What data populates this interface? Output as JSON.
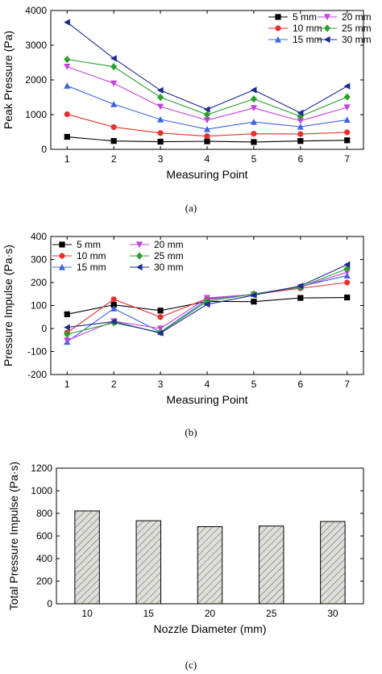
{
  "chart_data": [
    {
      "type": "line",
      "panel_label": "(a)",
      "xlabel": "Measuring Point",
      "ylabel": "Peak Pressure (Pa)",
      "x": [
        1,
        2,
        3,
        4,
        5,
        6,
        7
      ],
      "ylim": [
        0,
        4000
      ],
      "yticks": [
        0,
        1000,
        2000,
        3000,
        4000
      ],
      "grid": false,
      "legend_position": "top-right",
      "series": [
        {
          "name": "5 mm",
          "color": "#000000",
          "marker": "square",
          "values": [
            360,
            240,
            220,
            230,
            210,
            240,
            260
          ]
        },
        {
          "name": "10 mm",
          "color": "#e8312f",
          "marker": "circle",
          "values": [
            1010,
            640,
            470,
            380,
            450,
            440,
            490
          ]
        },
        {
          "name": "15 mm",
          "color": "#3f64e0",
          "marker": "triangle-up",
          "values": [
            1830,
            1300,
            860,
            580,
            790,
            650,
            850
          ]
        },
        {
          "name": "20 mm",
          "color": "#c440e0",
          "marker": "triangle-down",
          "values": [
            2380,
            1900,
            1230,
            840,
            1190,
            820,
            1210
          ]
        },
        {
          "name": "25 mm",
          "color": "#2ca02c",
          "marker": "diamond",
          "values": [
            2590,
            2380,
            1500,
            1000,
            1450,
            950,
            1510
          ]
        },
        {
          "name": "30 mm",
          "color": "#1b2a8f",
          "marker": "triangle-left",
          "values": [
            3660,
            2620,
            1700,
            1150,
            1710,
            1050,
            1820
          ]
        }
      ]
    },
    {
      "type": "line",
      "panel_label": "(b)",
      "xlabel": "Measuring Point",
      "ylabel": "Pressure Impulse (Pa·s)",
      "x": [
        1,
        2,
        3,
        4,
        5,
        6,
        7
      ],
      "ylim": [
        -200,
        400
      ],
      "yticks": [
        -200,
        -100,
        0,
        100,
        200,
        300,
        400
      ],
      "grid": false,
      "legend_position": "top-left",
      "series": [
        {
          "name": "5 mm",
          "color": "#000000",
          "marker": "square",
          "values": [
            62,
            103,
            78,
            118,
            117,
            133,
            135
          ]
        },
        {
          "name": "10 mm",
          "color": "#e8312f",
          "marker": "circle",
          "values": [
            -18,
            127,
            50,
            130,
            148,
            175,
            200
          ]
        },
        {
          "name": "15 mm",
          "color": "#3f64e0",
          "marker": "triangle-up",
          "values": [
            -58,
            87,
            -15,
            125,
            150,
            183,
            230
          ]
        },
        {
          "name": "20 mm",
          "color": "#c440e0",
          "marker": "triangle-down",
          "values": [
            -52,
            32,
            0,
            133,
            148,
            180,
            245
          ]
        },
        {
          "name": "25 mm",
          "color": "#2ca02c",
          "marker": "diamond",
          "values": [
            -25,
            25,
            -17,
            118,
            150,
            180,
            260
          ]
        },
        {
          "name": "30 mm",
          "color": "#1b2a8f",
          "marker": "triangle-left",
          "values": [
            5,
            30,
            -20,
            105,
            145,
            185,
            278
          ]
        }
      ]
    },
    {
      "type": "bar",
      "panel_label": "(c)",
      "xlabel": "Nozzle Diameter (mm)",
      "ylabel": "Total Pressure Impulse (Pa·s)",
      "categories": [
        "10",
        "15",
        "20",
        "25",
        "30"
      ],
      "values": [
        822,
        735,
        682,
        688,
        728
      ],
      "ylim": [
        0,
        1200
      ],
      "yticks": [
        0,
        200,
        400,
        600,
        800,
        1000,
        1200
      ],
      "grid": false,
      "bar_fill": "#dedfda",
      "bar_pattern": "diagonal-hatch"
    }
  ]
}
